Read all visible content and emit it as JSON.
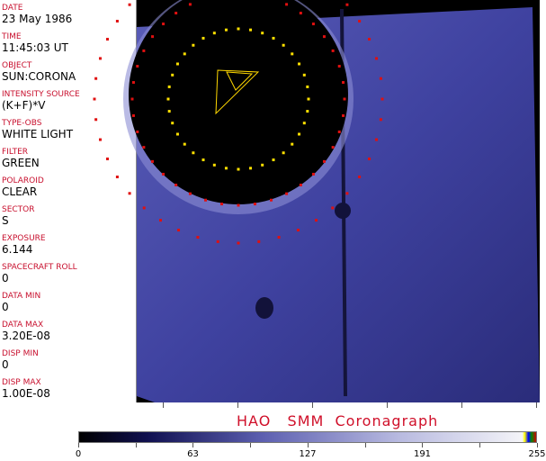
{
  "fields": [
    {
      "label": "DATE",
      "value": "23 May 1986"
    },
    {
      "label": "TIME",
      "value": "11:45:03 UT"
    },
    {
      "label": "OBJECT",
      "value": "SUN:CORONA"
    },
    {
      "label": "INTENSITY SOURCE",
      "value": "(K+F)*V"
    },
    {
      "label": "TYPE-OBS",
      "value": "WHITE LIGHT"
    },
    {
      "label": "FILTER",
      "value": "GREEN"
    },
    {
      "label": "POLAROID",
      "value": "CLEAR"
    },
    {
      "label": "SECTOR",
      "value": "S"
    },
    {
      "label": "EXPOSURE",
      "value": "6.144"
    },
    {
      "label": "SPACECRAFT ROLL",
      "value": "0"
    },
    {
      "label": "DATA MIN",
      "value": "0"
    },
    {
      "label": "DATA MAX",
      "value": "3.20E-08"
    },
    {
      "label": "DISP MIN",
      "value": "0"
    },
    {
      "label": "DISP MAX",
      "value": "1.00E-08"
    }
  ],
  "title": "HAO   SMM  Coronagraph",
  "colorbar": {
    "ticks": [
      "0",
      "63",
      "127",
      "191",
      "255"
    ],
    "colors": {
      "low": "#000000",
      "mid": "#5c5fb0",
      "high": "#f4f4f8",
      "accent": "#d0102a"
    }
  }
}
